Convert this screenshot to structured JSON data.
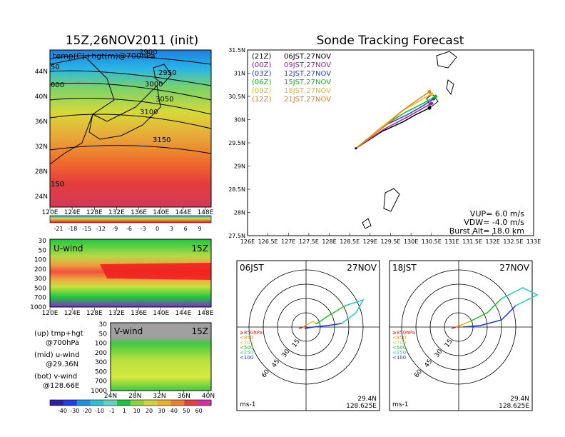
{
  "left": {
    "title": "15Z,26NOV2011 (init)",
    "map_label": "temp(C)+hgt(m)@700hPa",
    "lon_ticks": [
      "120E",
      "124E",
      "128E",
      "132E",
      "136E",
      "140E",
      "144E",
      "148E"
    ],
    "lat_ticks": [
      "44N",
      "40N",
      "36N",
      "32N",
      "28N",
      "24N"
    ],
    "contours": [
      "2900",
      "2950",
      "3000",
      "3050",
      "3100",
      "3150"
    ],
    "contours_edge": [
      "50",
      "000",
      "150"
    ],
    "temp_cbar": [
      "-21",
      "-18",
      "-15",
      "-12",
      "-9",
      "-6",
      "-3",
      "0",
      "3",
      "6",
      "9"
    ],
    "uwind": {
      "label": "U-wind",
      "time": "15Z",
      "p_ticks": [
        "30",
        "50",
        "100",
        "200",
        "300",
        "500",
        "700",
        "1000"
      ],
      "lon_ticks": [
        "120E",
        "124E",
        "128E",
        "132E",
        "136E",
        "140E",
        "144E",
        "148E"
      ]
    },
    "vwind": {
      "label": "V-wind",
      "time": "15Z",
      "p_ticks": [
        "30",
        "50",
        "100",
        "200",
        "300",
        "500",
        "700",
        "1000"
      ],
      "lat_ticks": [
        "24N",
        "28N",
        "32N",
        "36N",
        "40N"
      ]
    },
    "wind_cbar": [
      "-40",
      "-30",
      "-20",
      "-10",
      "-1",
      "1",
      "10",
      "20",
      "30",
      "40",
      "50",
      "60"
    ],
    "legend": [
      [
        "(up) tmp+hgt",
        "@700hPa"
      ],
      [
        "(mid) u-wind",
        "@29.36N"
      ],
      [
        "(bot) v-wind",
        "@128.66E"
      ]
    ]
  },
  "track": {
    "title": "Sonde Tracking Forecast",
    "lon_ticks": [
      "126E",
      "126.5E",
      "127E",
      "127.5E",
      "128E",
      "128.5E",
      "129E",
      "129.5E",
      "130E",
      "130.5E",
      "131E",
      "131.5E",
      "132E",
      "132.5E",
      "133E"
    ],
    "lat_ticks": [
      "31.5N",
      "31N",
      "30.5N",
      "30N",
      "29.5N",
      "29N",
      "28.5N",
      "28N",
      "27.5N"
    ],
    "entries": [
      {
        "code": "(21Z)",
        "time": "06JST,27NOV",
        "color": "#000000"
      },
      {
        "code": "(00Z)",
        "time": "09JST,27NOV",
        "color": "#a020a0"
      },
      {
        "code": "(03Z)",
        "time": "12JST,27NOV",
        "color": "#2040e0"
      },
      {
        "code": "(06Z)",
        "time": "15JST,27NOV",
        "color": "#18b818"
      },
      {
        "code": "(09Z)",
        "time": "18JST,27NOV",
        "color": "#e8b820"
      },
      {
        "code": "(12Z)",
        "time": "21JST,27NOV",
        "color": "#e88018"
      }
    ],
    "params": [
      "VUP= 6.0 m/s",
      "VDW= -4.0 m/s",
      "Burst Alt= 18.0 km"
    ]
  },
  "hodo1": {
    "time": "06JST",
    "date": "27NOV",
    "lat": "29.4N",
    "lon": "128.625E",
    "unit": "ms-1",
    "rings": [
      "15",
      "30",
      "45",
      "60"
    ]
  },
  "hodo2": {
    "time": "18JST",
    "date": "27NOV",
    "lat": "29.4N",
    "lon": "128.625E",
    "unit": "ms-1",
    "rings": [
      "15",
      "30",
      "45",
      "60"
    ]
  },
  "hodo_levels": [
    {
      "label": "≥850hPa",
      "color": "#e02020"
    },
    {
      "label": "<850",
      "color": "#e89020"
    },
    {
      "label": "<700",
      "color": "#d8c020"
    },
    {
      "label": "<500",
      "color": "#20c020"
    },
    {
      "label": "<250",
      "color": "#20c8c8"
    },
    {
      "label": "<100",
      "color": "#2030e0"
    }
  ],
  "chart_data": [
    {
      "type": "line",
      "x_label": "",
      "y_label": "",
      "xlim": [
        126,
        133
      ],
      "ylim": [
        27.5,
        31.5
      ],
      "launch": [
        128.65,
        29.38
      ],
      "series": [
        {
          "name": "(21Z)",
          "x": [
            128.65,
            129.3,
            129.8,
            130.1,
            130.45
          ],
          "y": [
            29.38,
            29.75,
            29.95,
            30.1,
            30.25
          ]
        },
        {
          "name": "(00Z)",
          "x": [
            128.65,
            129.35,
            129.9,
            130.2,
            130.5
          ],
          "y": [
            29.38,
            29.8,
            30.05,
            30.2,
            30.35
          ]
        },
        {
          "name": "(03Z)",
          "x": [
            128.65,
            129.3,
            129.9,
            130.3,
            130.55
          ],
          "y": [
            29.38,
            29.85,
            30.1,
            30.3,
            30.45
          ]
        },
        {
          "name": "(06Z)",
          "x": [
            128.65,
            129.3,
            129.85,
            130.3,
            130.6
          ],
          "y": [
            29.38,
            29.85,
            30.15,
            30.35,
            30.5
          ]
        },
        {
          "name": "(09Z)",
          "x": [
            128.65,
            129.3,
            129.8,
            130.2,
            130.5
          ],
          "y": [
            29.38,
            29.85,
            30.2,
            30.4,
            30.55
          ]
        },
        {
          "name": "(12Z)",
          "x": [
            128.65,
            129.35,
            129.8,
            130.2,
            130.45
          ],
          "y": [
            29.38,
            29.85,
            30.2,
            30.45,
            30.6
          ]
        }
      ]
    }
  ]
}
